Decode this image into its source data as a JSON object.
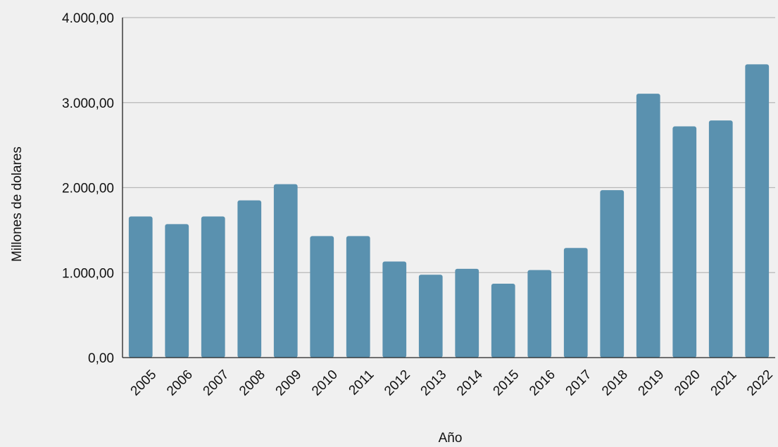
{
  "chart_data": {
    "type": "bar",
    "title": "",
    "xlabel": "Año",
    "ylabel": "Millones de dolares",
    "ylim": [
      0,
      4000
    ],
    "yticks": [
      0,
      1000,
      2000,
      3000,
      4000
    ],
    "ytick_labels": [
      "0,00",
      "1.000,00",
      "2.000,00",
      "3.000,00",
      "4.000,00"
    ],
    "categories": [
      "2005",
      "2006",
      "2007",
      "2008",
      "2009",
      "2010",
      "2011",
      "2012",
      "2013",
      "2014",
      "2015",
      "2016",
      "2017",
      "2018",
      "2019",
      "2020",
      "2021",
      "2022"
    ],
    "values": [
      1660,
      1570,
      1660,
      1850,
      2040,
      1430,
      1430,
      1130,
      975,
      1045,
      870,
      1030,
      1290,
      1970,
      3105,
      2720,
      2790,
      3450
    ],
    "bar_color": "#5a91af",
    "grid": true,
    "legend": "none"
  }
}
